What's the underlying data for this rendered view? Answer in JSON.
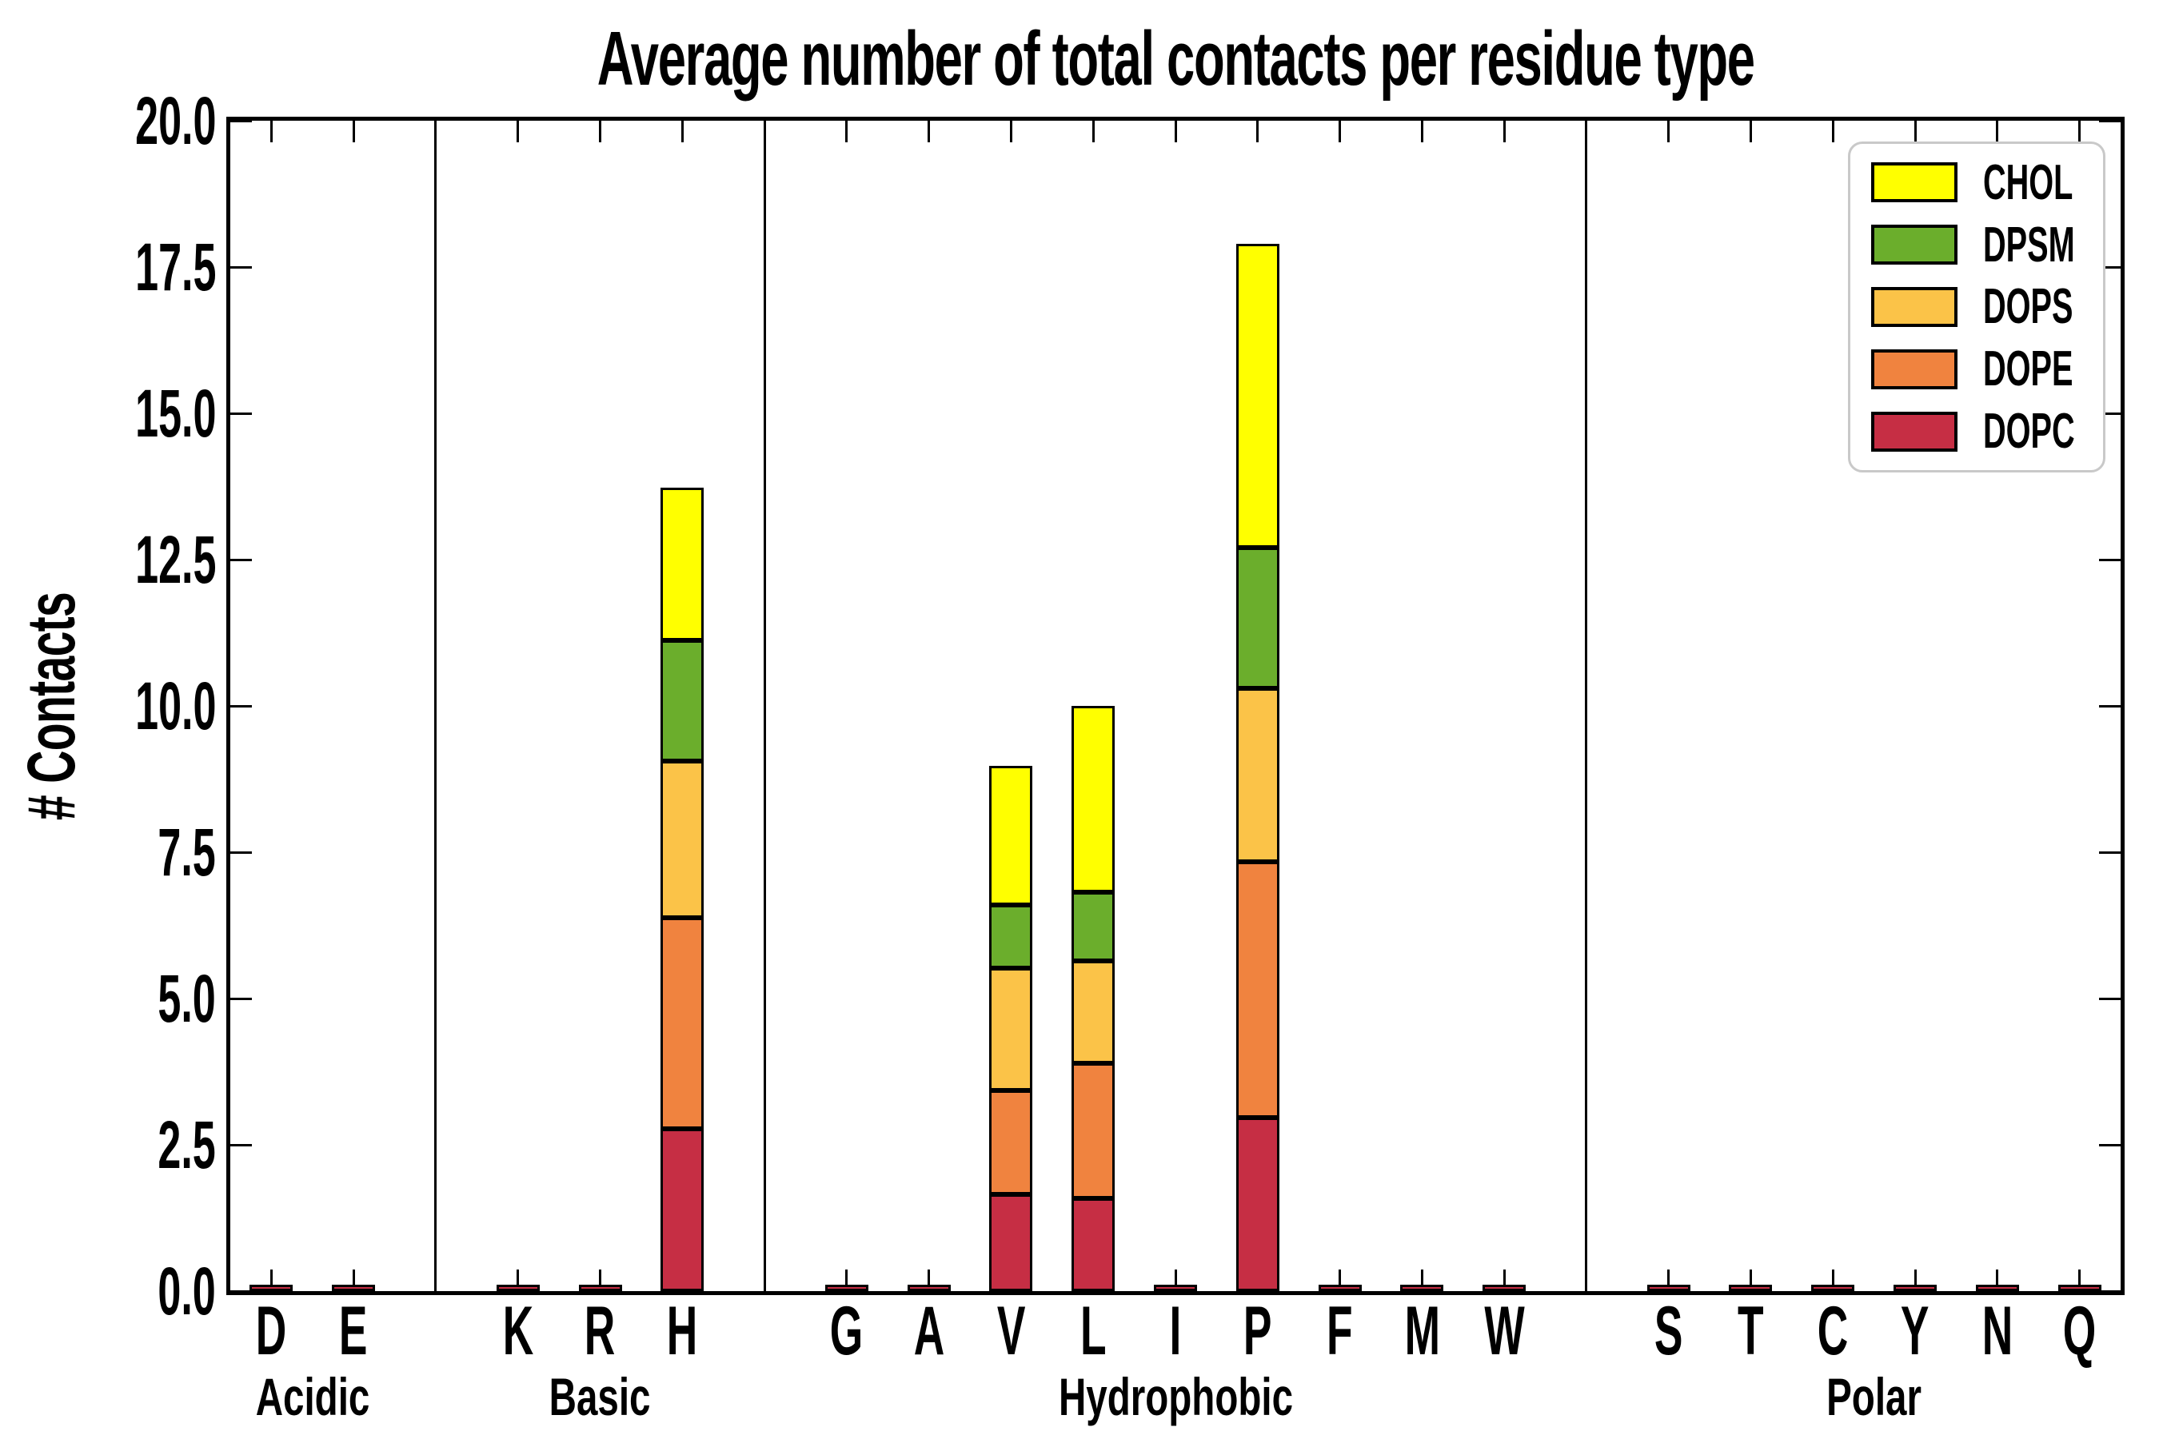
{
  "chart_data": {
    "type": "bar",
    "stacked": true,
    "title": "Average number of total contacts per residue type",
    "ylabel": "# Contacts",
    "xlabel": "",
    "ylim": [
      0,
      20
    ],
    "ytick_step": 2.5,
    "ytick_labels": [
      "0.0",
      "2.5",
      "5.0",
      "7.5",
      "10.0",
      "12.5",
      "15.0",
      "17.5",
      "20.0"
    ],
    "grid": false,
    "legend_position": "upper right",
    "legend_order_top_to_bottom": [
      "CHOL",
      "DPSM",
      "DOPS",
      "DOPE",
      "DOPC"
    ],
    "stack_order_bottom_to_top": [
      "DOPC",
      "DOPE",
      "DOPS",
      "DPSM",
      "CHOL"
    ],
    "colors": {
      "CHOL": "#ffff00",
      "DPSM": "#6bae2c",
      "DOPS": "#fbc348",
      "DOPE": "#f0833f",
      "DOPC": "#c62e44",
      "bar_edge": "#000000",
      "axis": "#000000",
      "legend_border": "#c9c9c9"
    },
    "groups": [
      {
        "label": "Acidic",
        "residues": [
          "D",
          "E"
        ]
      },
      {
        "label": "Basic",
        "residues": [
          "K",
          "R",
          "H"
        ]
      },
      {
        "label": "Hydrophobic",
        "residues": [
          "G",
          "A",
          "V",
          "L",
          "I",
          "P",
          "F",
          "M",
          "W"
        ]
      },
      {
        "label": "Polar",
        "residues": [
          "S",
          "T",
          "C",
          "Y",
          "N",
          "Q"
        ]
      }
    ],
    "values": {
      "D": {
        "DOPC": 0.05,
        "DOPE": 0,
        "DOPS": 0,
        "DPSM": 0,
        "CHOL": 0
      },
      "E": {
        "DOPC": 0.05,
        "DOPE": 0,
        "DOPS": 0,
        "DPSM": 0,
        "CHOL": 0
      },
      "K": {
        "DOPC": 0.05,
        "DOPE": 0,
        "DOPS": 0,
        "DPSM": 0,
        "CHOL": 0
      },
      "R": {
        "DOPC": 0.05,
        "DOPE": 0,
        "DOPS": 0,
        "DPSM": 0,
        "CHOL": 0
      },
      "H": {
        "DOPC": 2.78,
        "DOPE": 3.6,
        "DOPS": 2.68,
        "DPSM": 2.06,
        "CHOL": 2.61
      },
      "G": {
        "DOPC": 0.05,
        "DOPE": 0,
        "DOPS": 0,
        "DPSM": 0,
        "CHOL": 0
      },
      "A": {
        "DOPC": 0.05,
        "DOPE": 0,
        "DOPS": 0,
        "DPSM": 0,
        "CHOL": 0
      },
      "V": {
        "DOPC": 1.65,
        "DOPE": 1.78,
        "DOPS": 2.09,
        "DPSM": 1.08,
        "CHOL": 2.37
      },
      "L": {
        "DOPC": 1.58,
        "DOPE": 2.31,
        "DOPS": 1.75,
        "DPSM": 1.18,
        "CHOL": 3.18
      },
      "I": {
        "DOPC": 0.05,
        "DOPE": 0,
        "DOPS": 0,
        "DPSM": 0,
        "CHOL": 0
      },
      "P": {
        "DOPC": 2.96,
        "DOPE": 4.37,
        "DOPS": 2.97,
        "DPSM": 2.41,
        "CHOL": 5.19
      },
      "F": {
        "DOPC": 0.05,
        "DOPE": 0,
        "DOPS": 0,
        "DPSM": 0,
        "CHOL": 0
      },
      "M": {
        "DOPC": 0.05,
        "DOPE": 0,
        "DOPS": 0,
        "DPSM": 0,
        "CHOL": 0
      },
      "W": {
        "DOPC": 0.05,
        "DOPE": 0,
        "DOPS": 0,
        "DPSM": 0,
        "CHOL": 0
      },
      "S": {
        "DOPC": 0.05,
        "DOPE": 0,
        "DOPS": 0,
        "DPSM": 0,
        "CHOL": 0
      },
      "T": {
        "DOPC": 0.05,
        "DOPE": 0,
        "DOPS": 0,
        "DPSM": 0,
        "CHOL": 0
      },
      "C": {
        "DOPC": 0.05,
        "DOPE": 0,
        "DOPS": 0,
        "DPSM": 0,
        "CHOL": 0
      },
      "Y": {
        "DOPC": 0.05,
        "DOPE": 0,
        "DOPS": 0,
        "DPSM": 0,
        "CHOL": 0
      },
      "N": {
        "DOPC": 0.05,
        "DOPE": 0,
        "DOPS": 0,
        "DPSM": 0,
        "CHOL": 0
      },
      "Q": {
        "DOPC": 0.05,
        "DOPE": 0,
        "DOPS": 0,
        "DPSM": 0,
        "CHOL": 0
      }
    }
  }
}
